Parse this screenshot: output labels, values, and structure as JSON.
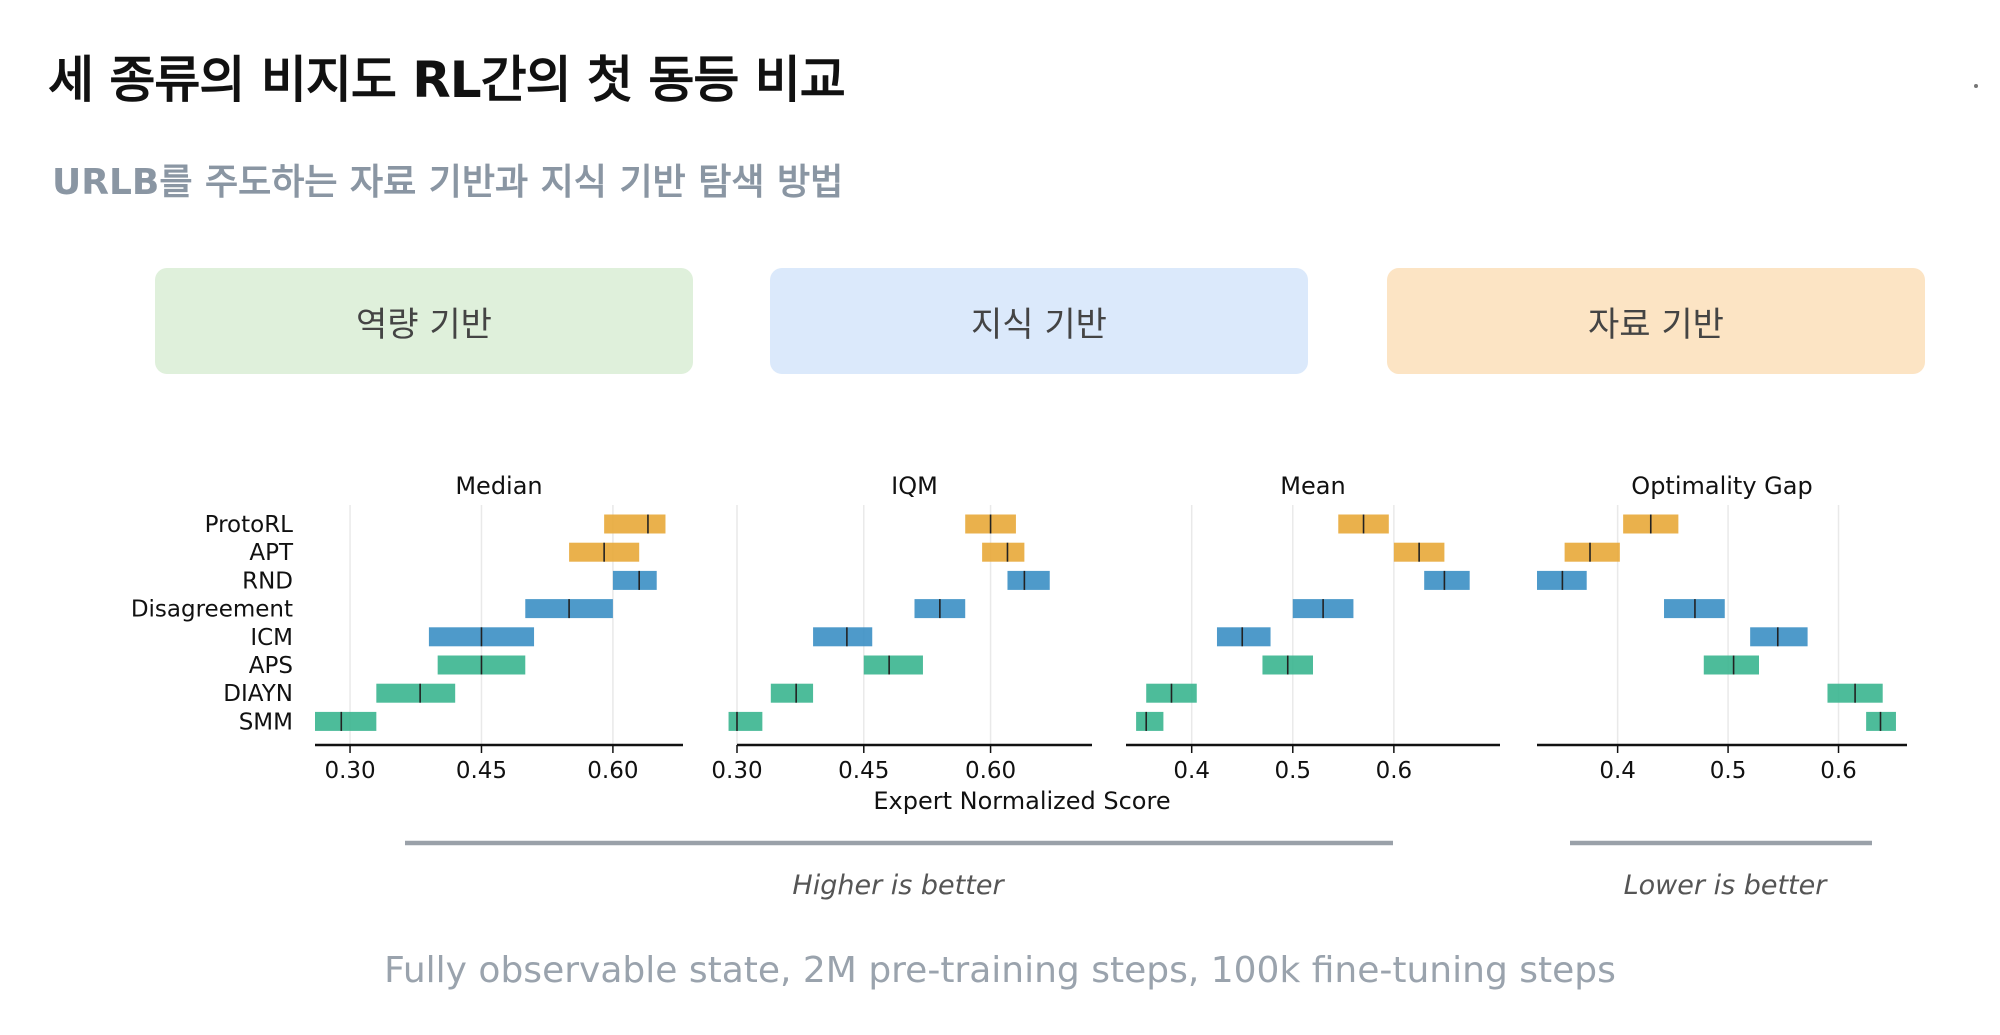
{
  "slide": {
    "title": "세 종류의 비지도 RL간의 첫 동등 비교",
    "subtitle": "URLB를 주도하는 자료 기반과 지식 기반 탐색 방법",
    "categories": [
      {
        "label": "역량 기반",
        "color": "#dff0db"
      },
      {
        "label": "지식 기반",
        "color": "#dbe9fb"
      },
      {
        "label": "자료 기반",
        "color": "#fce4c4"
      }
    ],
    "caption": "Fully observable state, 2M pre-training steps, 100k fine-tuning steps"
  },
  "chart_data": {
    "type": "interval",
    "methods": [
      "ProtoRL",
      "APT",
      "RND",
      "Disagreement",
      "ICM",
      "APS",
      "DIAYN",
      "SMM"
    ],
    "method_colors": {
      "ProtoRL": "#e8a838",
      "APT": "#e8a838",
      "RND": "#3b8fc4",
      "Disagreement": "#3b8fc4",
      "ICM": "#3b8fc4",
      "APS": "#3ab58f",
      "DIAYN": "#3ab58f",
      "SMM": "#3ab58f"
    },
    "xlabel": "Expert Normalized Score",
    "panels": [
      {
        "title": "Median",
        "xlim": [
          0.26,
          0.68
        ],
        "ticks": [
          0.3,
          0.45,
          0.6
        ],
        "tick_labels": [
          "0.30",
          "0.45",
          "0.60"
        ],
        "intervals": [
          {
            "low": 0.59,
            "high": 0.66,
            "point": 0.64
          },
          {
            "low": 0.55,
            "high": 0.63,
            "point": 0.59
          },
          {
            "low": 0.6,
            "high": 0.65,
            "point": 0.63
          },
          {
            "low": 0.5,
            "high": 0.6,
            "point": 0.55
          },
          {
            "low": 0.39,
            "high": 0.51,
            "point": 0.45
          },
          {
            "low": 0.4,
            "high": 0.5,
            "point": 0.45
          },
          {
            "low": 0.33,
            "high": 0.42,
            "point": 0.38
          },
          {
            "low": 0.26,
            "high": 0.33,
            "point": 0.29
          }
        ]
      },
      {
        "title": "IQM",
        "xlim": [
          0.3,
          0.72
        ],
        "ticks": [
          0.3,
          0.45,
          0.6
        ],
        "tick_labels": [
          "0.30",
          "0.45",
          "0.60"
        ],
        "intervals": [
          {
            "low": 0.57,
            "high": 0.63,
            "point": 0.6
          },
          {
            "low": 0.59,
            "high": 0.64,
            "point": 0.62
          },
          {
            "low": 0.62,
            "high": 0.67,
            "point": 0.64
          },
          {
            "low": 0.51,
            "high": 0.57,
            "point": 0.54
          },
          {
            "low": 0.39,
            "high": 0.46,
            "point": 0.43
          },
          {
            "low": 0.45,
            "high": 0.52,
            "point": 0.48
          },
          {
            "low": 0.34,
            "high": 0.39,
            "point": 0.37
          },
          {
            "low": 0.29,
            "high": 0.33,
            "point": 0.3
          }
        ]
      },
      {
        "title": "Mean",
        "xlim": [
          0.335,
          0.705
        ],
        "ticks": [
          0.4,
          0.5,
          0.6
        ],
        "tick_labels": [
          "0.4",
          "0.5",
          "0.6"
        ],
        "intervals": [
          {
            "low": 0.545,
            "high": 0.595,
            "point": 0.57
          },
          {
            "low": 0.6,
            "high": 0.65,
            "point": 0.625
          },
          {
            "low": 0.63,
            "high": 0.675,
            "point": 0.65
          },
          {
            "low": 0.5,
            "high": 0.56,
            "point": 0.53
          },
          {
            "low": 0.425,
            "high": 0.478,
            "point": 0.45
          },
          {
            "low": 0.47,
            "high": 0.52,
            "point": 0.495
          },
          {
            "low": 0.355,
            "high": 0.405,
            "point": 0.38
          },
          {
            "low": 0.345,
            "high": 0.372,
            "point": 0.355
          }
        ]
      },
      {
        "title": "Optimality Gap",
        "xlim": [
          0.327,
          0.662
        ],
        "ticks": [
          0.4,
          0.5,
          0.6
        ],
        "tick_labels": [
          "0.4",
          "0.5",
          "0.6"
        ],
        "intervals": [
          {
            "low": 0.405,
            "high": 0.455,
            "point": 0.43
          },
          {
            "low": 0.352,
            "high": 0.402,
            "point": 0.375
          },
          {
            "low": 0.327,
            "high": 0.372,
            "point": 0.35
          },
          {
            "low": 0.442,
            "high": 0.497,
            "point": 0.47
          },
          {
            "low": 0.52,
            "high": 0.572,
            "point": 0.545
          },
          {
            "low": 0.478,
            "high": 0.528,
            "point": 0.505
          },
          {
            "low": 0.59,
            "high": 0.64,
            "point": 0.615
          },
          {
            "low": 0.625,
            "high": 0.652,
            "point": 0.638
          }
        ]
      }
    ],
    "annotations": [
      "Higher is better",
      "Lower is better"
    ]
  }
}
